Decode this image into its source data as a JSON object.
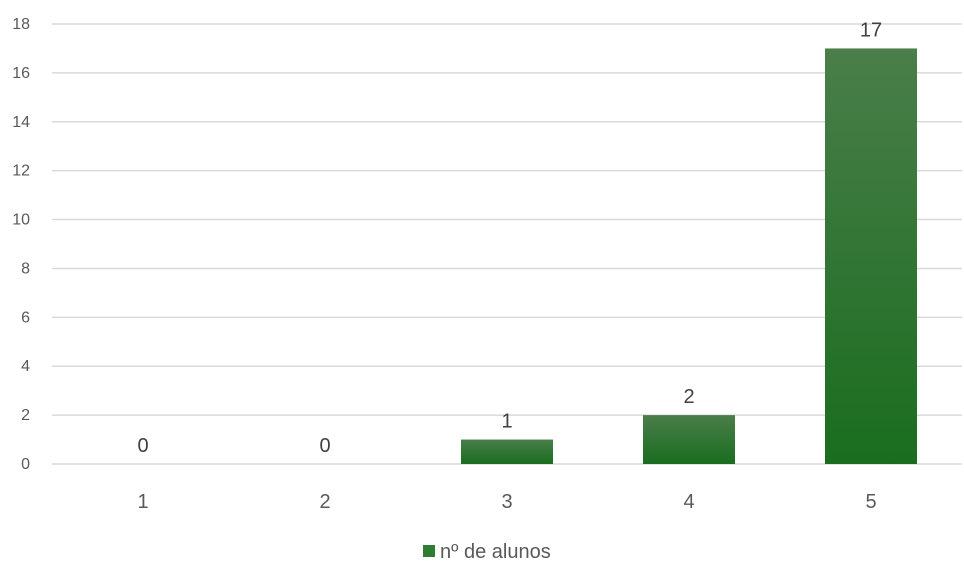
{
  "chart_data": {
    "type": "bar",
    "categories": [
      "1",
      "2",
      "3",
      "4",
      "5"
    ],
    "series": [
      {
        "name": "nº de alunos",
        "values": [
          0,
          0,
          1,
          2,
          17
        ]
      }
    ],
    "ylim": [
      0,
      18
    ],
    "yticks": [
      "0",
      "2",
      "4",
      "6",
      "8",
      "10",
      "12",
      "14",
      "16",
      "18"
    ],
    "data_labels": [
      "0",
      "0",
      "1",
      "2",
      "17"
    ],
    "grid": true,
    "legend": "bottom",
    "colors": {
      "bar_top": "#4a7e4a",
      "bar_bottom": "#1a6d1f",
      "legend_swatch": "#2e7d32"
    }
  }
}
